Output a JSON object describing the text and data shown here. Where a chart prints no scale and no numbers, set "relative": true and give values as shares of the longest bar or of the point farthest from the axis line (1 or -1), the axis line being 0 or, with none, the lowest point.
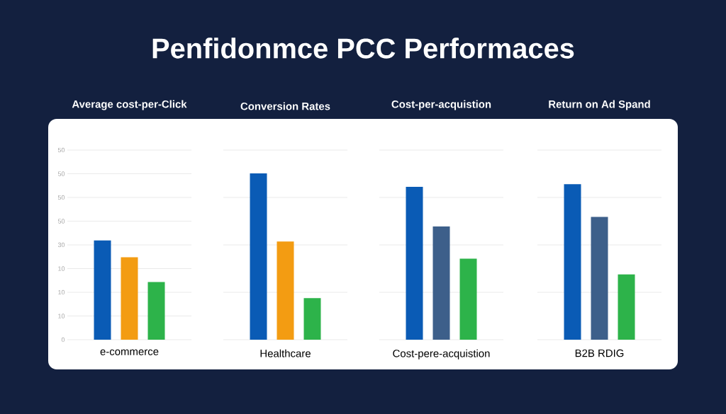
{
  "chart_data": [
    {
      "type": "other",
      "title": "Penfidonmce PCC Performaces"
    },
    {
      "type": "bar",
      "title": "Average cost-per-Click",
      "categories": [
        "e-commerce"
      ],
      "relative": true,
      "grid": "y",
      "annotations": [
        "0",
        "10",
        "10",
        "10",
        "30",
        "50",
        "50",
        "50",
        "50"
      ],
      "series": [
        {
          "color": "#0a5bb5",
          "values": [
            1
          ]
        },
        {
          "color": "#f39c12",
          "values": [
            0.83
          ]
        },
        {
          "color": "#2db34a",
          "values": [
            0.58
          ]
        }
      ]
    },
    {
      "type": "bar",
      "title": "Conversion Rates",
      "categories": [
        "Healthcare"
      ],
      "relative": true,
      "grid": "y",
      "series": [
        {
          "color": "#0a5bb5",
          "values": [
            1
          ]
        },
        {
          "color": "#f39c12",
          "values": [
            0.59
          ]
        },
        {
          "color": "#2db34a",
          "values": [
            0.25
          ]
        }
      ]
    },
    {
      "type": "bar",
      "title": "Cost-per-acquistion",
      "categories": [
        "Cost-pere-acquistion"
      ],
      "relative": true,
      "grid": "y",
      "series": [
        {
          "color": "#0a5bb5",
          "values": [
            1
          ]
        },
        {
          "color": "#3d5f8a",
          "values": [
            0.74
          ]
        },
        {
          "color": "#2db34a",
          "values": [
            0.53
          ]
        }
      ]
    },
    {
      "type": "bar",
      "title": "Return on Ad Spand",
      "categories": [
        "B2B RDIG"
      ],
      "relative": true,
      "grid": "y",
      "series": [
        {
          "color": "#0a5bb5",
          "values": [
            1
          ]
        },
        {
          "color": "#3d5f8a",
          "values": [
            0.79
          ]
        },
        {
          "color": "#2db34a",
          "values": [
            0.42
          ]
        }
      ]
    }
  ]
}
